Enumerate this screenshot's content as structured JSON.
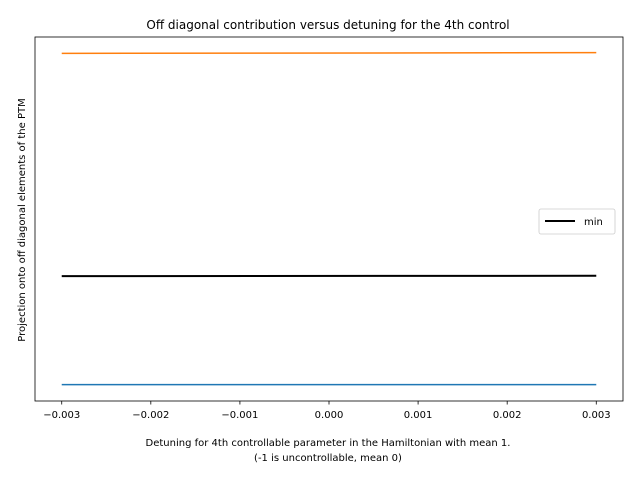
{
  "chart_data": {
    "type": "line",
    "title": "Off diagonal contribution versus detuning for the 4th control",
    "xlabel_line1": "Detuning for 4th controllable parameter in the Hamiltonian with mean 1.",
    "xlabel_line2": "(-1 is uncontrollable, mean 0)",
    "ylabel": "Projection onto off diagonal elements of the PTM",
    "x": [
      -0.003,
      0.003
    ],
    "xlim": [
      -0.0033,
      0.0033
    ],
    "ylim": [
      0.0,
      1.0
    ],
    "xticks": [
      -0.003,
      -0.002,
      -0.001,
      0.0,
      0.001,
      0.002,
      0.003
    ],
    "xtick_labels": [
      "−0.003",
      "−0.002",
      "−0.001",
      "0.000",
      "0.001",
      "0.002",
      "0.003"
    ],
    "yticks_visible": false,
    "grid": false,
    "legend_placement": "center-right",
    "series": [
      {
        "id": "blue",
        "color": "#1f77b4",
        "width": 1.5,
        "values": [
          0.045,
          0.045
        ]
      },
      {
        "id": "orange",
        "color": "#ff7f0e",
        "width": 1.5,
        "values": [
          0.955,
          0.957
        ]
      },
      {
        "name": "min",
        "id": "min",
        "color": "#000000",
        "width": 2,
        "values": [
          0.343,
          0.344
        ]
      }
    ]
  }
}
